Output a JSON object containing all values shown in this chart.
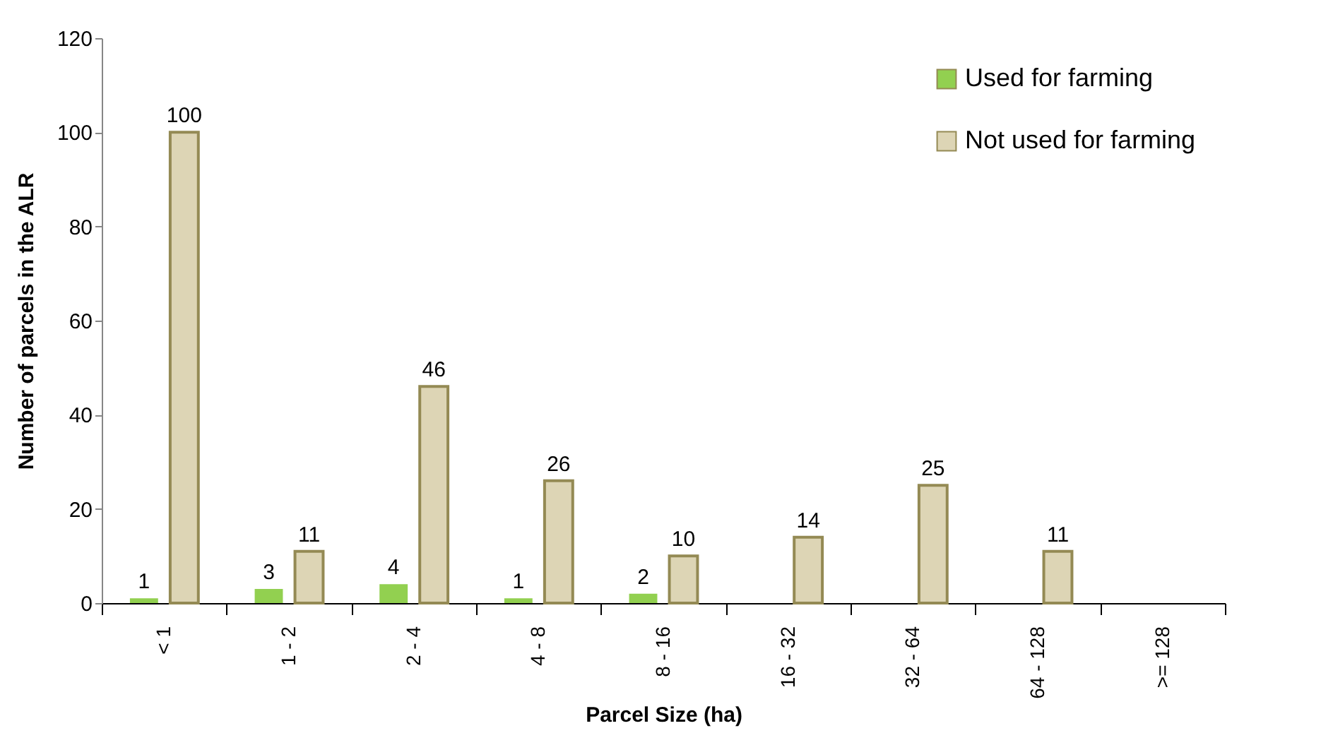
{
  "chart_data": {
    "type": "bar",
    "xlabel": "Parcel Size (ha)",
    "ylabel": "Number of parcels in the ALR",
    "categories": [
      "< 1",
      "1 - 2",
      "2 - 4",
      "4 - 8",
      "8 - 16",
      "16 - 32",
      "32 - 64",
      "64 - 128",
      ">= 128"
    ],
    "series": [
      {
        "name": "Used for farming",
        "color": "#92d050",
        "values": [
          1,
          3,
          4,
          1,
          2,
          null,
          null,
          null,
          null
        ]
      },
      {
        "name": "Not used for farming",
        "color": "#ddd5b5",
        "values": [
          100,
          11,
          46,
          26,
          10,
          14,
          25,
          11,
          null
        ]
      }
    ],
    "ylim": [
      0,
      120
    ],
    "yticks": [
      0,
      20,
      40,
      60,
      80,
      100,
      120
    ],
    "grid": false,
    "legend": "top right",
    "data_labels": true
  }
}
